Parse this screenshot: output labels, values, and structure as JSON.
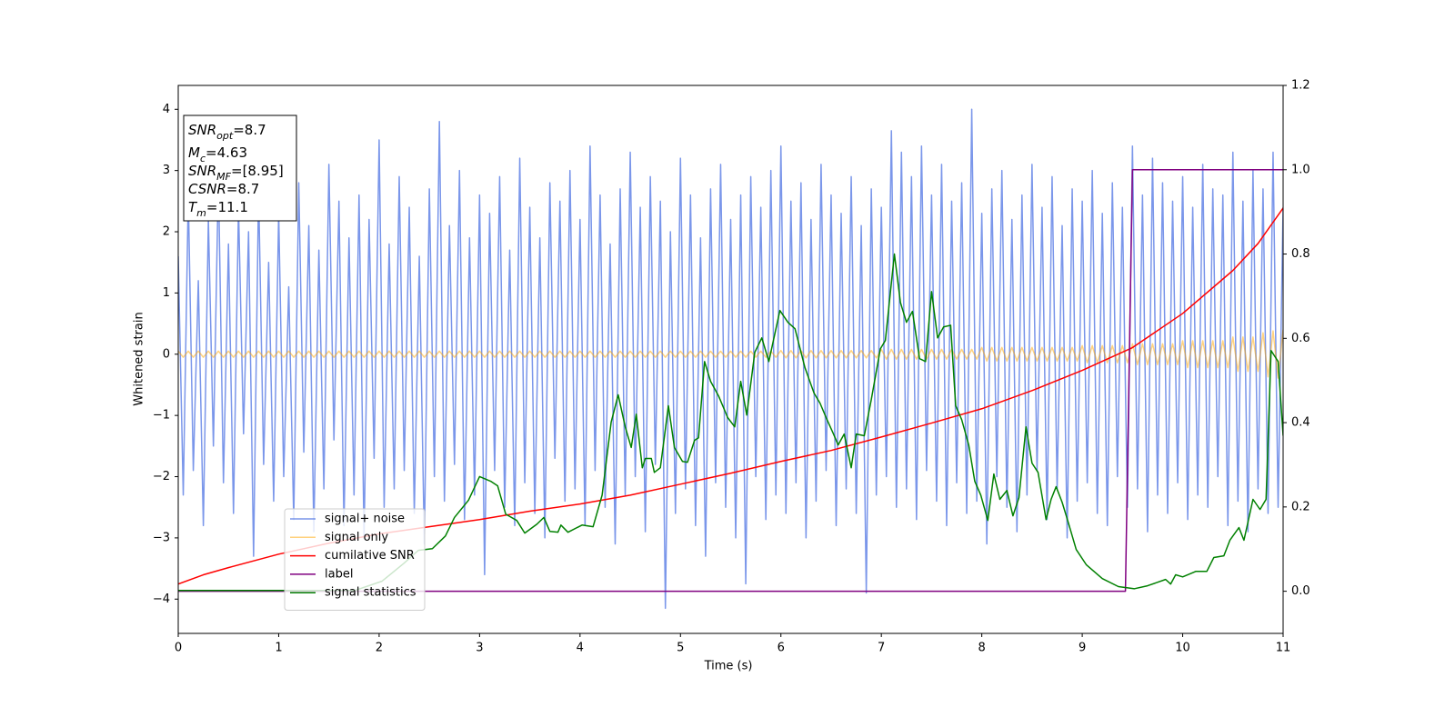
{
  "chart_data": {
    "type": "line",
    "xlabel": "Time (s)",
    "ylabel": "Whitened strain",
    "xlim": [
      0,
      11
    ],
    "ylim": [
      -4.56,
      4.39
    ],
    "y2lim": [
      -0.1,
      1.2
    ],
    "xticks": [
      0,
      1,
      2,
      3,
      4,
      5,
      6,
      7,
      8,
      9,
      10,
      11
    ],
    "yticks": [
      {
        "value": -4,
        "label": "−4"
      },
      {
        "value": -3,
        "label": "−3"
      },
      {
        "value": -2,
        "label": "−2"
      },
      {
        "value": -1,
        "label": "−1"
      },
      0,
      1,
      2,
      3,
      4
    ],
    "y2ticks": [
      {
        "value": 0,
        "label": "0.0"
      },
      0.2,
      0.4,
      0.6,
      0.8,
      {
        "value": 1,
        "label": "1.0"
      },
      1.2
    ],
    "grid": false,
    "legend": "lower left",
    "annotations": [
      {
        "symbol": "SNR",
        "subscript": "opt",
        "text": "=8.7"
      },
      {
        "symbol": "M",
        "subscript": "c",
        "text": "=4.63"
      },
      {
        "symbol": "SNR",
        "subscript": "MF",
        "text": "=[8.95]"
      },
      {
        "symbol": "CSNR",
        "text": "=8.7"
      },
      {
        "symbol": "T",
        "subscript": "m",
        "text": "=11.1"
      }
    ],
    "x": [
      0,
      0.05,
      0.1,
      0.15,
      0.2,
      0.25,
      0.3,
      0.35,
      0.4,
      0.45,
      0.5,
      0.55,
      0.6,
      0.65,
      0.7,
      0.75,
      0.8,
      0.85,
      0.9,
      0.95,
      1,
      1.05,
      1.1,
      1.15,
      1.2,
      1.25,
      1.3,
      1.35,
      1.4,
      1.45,
      1.5,
      1.55,
      1.6,
      1.65,
      1.7,
      1.75,
      1.8,
      1.85,
      1.9,
      1.95,
      2,
      2.05,
      2.1,
      2.15,
      2.2,
      2.25,
      2.3,
      2.35,
      2.4,
      2.45,
      2.5,
      2.55,
      2.6,
      2.65,
      2.7,
      2.75,
      2.8,
      2.85,
      2.9,
      2.95,
      3,
      3.05,
      3.1,
      3.15,
      3.2,
      3.25,
      3.3,
      3.35,
      3.4,
      3.45,
      3.5,
      3.55,
      3.6,
      3.65,
      3.7,
      3.75,
      3.8,
      3.85,
      3.9,
      3.95,
      4,
      4.05,
      4.1,
      4.15,
      4.2,
      4.25,
      4.3,
      4.35,
      4.4,
      4.45,
      4.5,
      4.55,
      4.6,
      4.65,
      4.7,
      4.75,
      4.8,
      4.85,
      4.9,
      4.95,
      5,
      5.05,
      5.1,
      5.15,
      5.2,
      5.25,
      5.3,
      5.35,
      5.4,
      5.45,
      5.5,
      5.55,
      5.6,
      5.65,
      5.7,
      5.75,
      5.8,
      5.85,
      5.9,
      5.95,
      6,
      6.05,
      6.1,
      6.15,
      6.2,
      6.25,
      6.3,
      6.35,
      6.4,
      6.45,
      6.5,
      6.55,
      6.6,
      6.65,
      6.7,
      6.75,
      6.8,
      6.85,
      6.9,
      6.95,
      7,
      7.05,
      7.1,
      7.15,
      7.2,
      7.25,
      7.3,
      7.35,
      7.4,
      7.45,
      7.5,
      7.55,
      7.6,
      7.65,
      7.7,
      7.75,
      7.8,
      7.85,
      7.9,
      7.95,
      8,
      8.05,
      8.1,
      8.15,
      8.2,
      8.25,
      8.3,
      8.35,
      8.4,
      8.45,
      8.5,
      8.55,
      8.6,
      8.65,
      8.7,
      8.75,
      8.8,
      8.85,
      8.9,
      8.95,
      9,
      9.05,
      9.1,
      9.15,
      9.2,
      9.25,
      9.3,
      9.35,
      9.4,
      9.45,
      9.5,
      9.55,
      9.6,
      9.65,
      9.7,
      9.75,
      9.8,
      9.85,
      9.9,
      9.95,
      10,
      10.05,
      10.1,
      10.15,
      10.2,
      10.25,
      10.3,
      10.35,
      10.4,
      10.45,
      10.5,
      10.55,
      10.6,
      10.65,
      10.7,
      10.75,
      10.8,
      10.85,
      10.9,
      10.95,
      11
    ],
    "series": [
      {
        "name": "signal+ noise",
        "color": "#4169e1",
        "values": [
          1.6,
          -2.3,
          2.6,
          -1.9,
          1.2,
          -2.8,
          2.2,
          -1.5,
          2.9,
          -2.1,
          1.8,
          -2.6,
          2.4,
          -1.3,
          2.0,
          -3.3,
          2.7,
          -1.8,
          1.5,
          -2.4,
          2.3,
          -2.0,
          1.1,
          -2.7,
          2.8,
          -1.6,
          2.1,
          -2.9,
          1.7,
          -2.2,
          3.1,
          -1.4,
          2.5,
          -2.8,
          1.9,
          -2.3,
          2.6,
          -3.0,
          2.2,
          -1.7,
          3.5,
          -2.5,
          1.8,
          -2.2,
          2.9,
          -1.9,
          2.4,
          -2.6,
          1.6,
          -3.1,
          2.7,
          -2.0,
          3.8,
          -2.4,
          2.1,
          -1.8,
          3.0,
          -2.7,
          1.9,
          -2.3,
          2.6,
          -3.6,
          2.3,
          -1.9,
          2.9,
          -2.5,
          1.7,
          -2.8,
          3.2,
          -2.1,
          2.4,
          -2.6,
          1.9,
          -3.0,
          2.8,
          -1.7,
          2.5,
          -2.4,
          3.0,
          -2.2,
          2.2,
          -2.8,
          3.4,
          -1.9,
          2.6,
          -2.5,
          1.8,
          -3.1,
          2.7,
          -2.3,
          3.3,
          -2.0,
          2.4,
          -2.9,
          2.9,
          -1.8,
          2.5,
          -4.15,
          2.0,
          -2.6,
          3.2,
          -2.2,
          2.6,
          -2.8,
          1.9,
          -3.3,
          2.7,
          -2.1,
          3.1,
          -2.5,
          2.2,
          -3.0,
          2.6,
          -3.75,
          2.9,
          -2.0,
          2.4,
          -2.7,
          3.0,
          -2.3,
          3.4,
          -2.6,
          2.5,
          -2.1,
          2.8,
          -3.0,
          2.2,
          -2.4,
          3.1,
          -1.9,
          2.6,
          -2.8,
          2.3,
          -2.2,
          2.9,
          -2.6,
          2.1,
          -3.9,
          2.7,
          -2.3,
          2.4,
          -2.0,
          3.65,
          -2.5,
          3.3,
          -2.2,
          2.9,
          -2.7,
          3.4,
          -1.9,
          2.6,
          -2.4,
          3.1,
          -2.8,
          2.5,
          -2.1,
          2.8,
          -2.6,
          4.0,
          -2.4,
          2.3,
          -3.1,
          2.7,
          -2.0,
          3.0,
          -2.5,
          2.2,
          -2.9,
          2.6,
          -2.3,
          3.1,
          -1.9,
          2.4,
          -2.7,
          2.9,
          -2.2,
          2.1,
          -3.0,
          2.7,
          -2.4,
          2.5,
          -2.1,
          3.0,
          -2.6,
          2.3,
          -2.8,
          2.8,
          -2.0,
          2.4,
          -2.5,
          3.4,
          -2.2,
          2.6,
          -2.9,
          3.2,
          -2.3,
          2.8,
          -2.6,
          2.5,
          -2.1,
          2.9,
          -2.7,
          2.4,
          -2.3,
          3.1,
          -2.5,
          2.7,
          -2.0,
          2.6,
          -2.8,
          3.3,
          -2.4,
          2.5,
          -2.9,
          3.0,
          -2.2,
          2.7,
          -2.6,
          3.3,
          -2.5,
          2.4
        ]
      },
      {
        "name": "signal only",
        "color": "#ffa500",
        "values": [
          0.05,
          -0.05,
          0.05,
          -0.05,
          0.05,
          -0.05,
          0.05,
          -0.05,
          0.05,
          -0.05,
          0.05,
          -0.05,
          0.05,
          -0.05,
          0.05,
          -0.05,
          0.05,
          -0.05,
          0.05,
          -0.05,
          0.05,
          -0.05,
          0.05,
          -0.05,
          0.05,
          -0.05,
          0.05,
          -0.05,
          0.05,
          -0.05,
          0.05,
          -0.05,
          0.05,
          -0.05,
          0.05,
          -0.05,
          0.05,
          -0.05,
          0.05,
          -0.05,
          0.05,
          -0.05,
          0.05,
          -0.05,
          0.05,
          -0.05,
          0.05,
          -0.05,
          0.05,
          -0.05,
          0.05,
          -0.05,
          0.05,
          -0.05,
          0.05,
          -0.05,
          0.05,
          -0.05,
          0.05,
          -0.05,
          0.05,
          -0.05,
          0.05,
          -0.05,
          0.05,
          -0.05,
          0.05,
          -0.05,
          0.05,
          -0.05,
          0.05,
          -0.05,
          0.05,
          -0.05,
          0.05,
          -0.05,
          0.05,
          -0.05,
          0.05,
          -0.05,
          0.05,
          -0.05,
          0.05,
          -0.05,
          0.05,
          -0.05,
          0.05,
          -0.05,
          0.05,
          -0.05,
          0.05,
          -0.05,
          0.05,
          -0.05,
          0.05,
          -0.05,
          0.05,
          -0.05,
          0.05,
          -0.05,
          0.05,
          -0.05,
          0.05,
          -0.05,
          0.05,
          -0.05,
          0.05,
          -0.05,
          0.05,
          -0.05,
          0.05,
          -0.05,
          0.05,
          -0.05,
          0.05,
          -0.05,
          0.05,
          -0.05,
          0.05,
          -0.05,
          0.06,
          -0.06,
          0.06,
          -0.06,
          0.06,
          -0.06,
          0.06,
          -0.06,
          0.06,
          -0.06,
          0.06,
          -0.06,
          0.06,
          -0.06,
          0.06,
          -0.06,
          0.06,
          -0.06,
          0.06,
          -0.06,
          0.08,
          -0.08,
          0.08,
          -0.08,
          0.08,
          -0.08,
          0.08,
          -0.08,
          0.08,
          -0.08,
          0.08,
          -0.08,
          0.08,
          -0.08,
          0.08,
          -0.08,
          0.08,
          -0.08,
          0.08,
          -0.08,
          0.11,
          -0.11,
          0.11,
          -0.11,
          0.11,
          -0.11,
          0.11,
          -0.11,
          0.11,
          -0.11,
          0.11,
          -0.11,
          0.11,
          -0.11,
          0.11,
          -0.11,
          0.11,
          -0.11,
          0.11,
          -0.11,
          0.14,
          -0.14,
          0.14,
          -0.14,
          0.14,
          -0.14,
          0.14,
          -0.14,
          0.14,
          -0.14,
          0.17,
          -0.17,
          0.17,
          -0.17,
          0.17,
          -0.17,
          0.17,
          -0.17,
          0.17,
          -0.17,
          0.22,
          -0.22,
          0.22,
          -0.22,
          0.22,
          -0.22,
          0.22,
          -0.22,
          0.22,
          -0.22,
          0.28,
          -0.28,
          0.28,
          -0.28,
          0.28,
          -0.28,
          0.35,
          -0.37,
          0.38,
          -0.39,
          0.4
        ]
      },
      {
        "name": "cumilative SNR",
        "color": "#ff0000",
        "axis": "y2",
        "x": [
          0,
          0.25,
          0.5,
          1,
          1.5,
          2,
          2.5,
          3,
          3.5,
          4,
          4.5,
          5,
          5.5,
          6,
          6.5,
          7,
          7.5,
          8,
          8.5,
          9,
          9.5,
          10,
          10.5,
          10.75,
          11
        ],
        "values": [
          0.017,
          0.039,
          0.056,
          0.088,
          0.114,
          0.136,
          0.153,
          0.17,
          0.19,
          0.207,
          0.228,
          0.254,
          0.28,
          0.308,
          0.334,
          0.366,
          0.399,
          0.433,
          0.476,
          0.524,
          0.578,
          0.659,
          0.761,
          0.825,
          0.909
        ]
      },
      {
        "name": "label",
        "color": "#800080",
        "axis": "y2",
        "x": [
          0,
          9.43,
          9.5,
          11
        ],
        "values": [
          0,
          0,
          1,
          1
        ]
      },
      {
        "name": "signal statistics",
        "color": "#008000",
        "axis": "y2",
        "x": [
          0,
          1.76,
          2.03,
          2.25,
          2.39,
          2.53,
          2.66,
          2.75,
          2.89,
          3.0,
          3.11,
          3.18,
          3.26,
          3.37,
          3.45,
          3.57,
          3.64,
          3.7,
          3.78,
          3.81,
          3.88,
          4.02,
          4.13,
          4.22,
          4.31,
          4.38,
          4.45,
          4.51,
          4.56,
          4.62,
          4.65,
          4.71,
          4.74,
          4.8,
          4.88,
          4.94,
          5.02,
          5.07,
          5.14,
          5.18,
          5.24,
          5.3,
          5.38,
          5.47,
          5.54,
          5.6,
          5.66,
          5.74,
          5.81,
          5.88,
          5.99,
          6.07,
          6.14,
          6.24,
          6.33,
          6.39,
          6.45,
          6.52,
          6.57,
          6.63,
          6.7,
          6.75,
          6.83,
          6.9,
          6.99,
          7.04,
          7.13,
          7.19,
          7.25,
          7.31,
          7.38,
          7.44,
          7.5,
          7.56,
          7.62,
          7.69,
          7.74,
          7.8,
          7.87,
          7.93,
          7.99,
          8.06,
          8.12,
          8.18,
          8.25,
          8.31,
          8.37,
          8.44,
          8.5,
          8.56,
          8.64,
          8.69,
          8.74,
          8.8,
          8.86,
          8.94,
          9.04,
          9.2,
          9.36,
          9.52,
          9.65,
          9.83,
          9.88,
          9.93,
          10.0,
          10.13,
          10.24,
          10.31,
          10.41,
          10.47,
          10.56,
          10.61,
          10.7,
          10.77,
          10.83,
          10.88,
          10.95,
          11.0
        ],
        "values": [
          0.002,
          0.002,
          0.024,
          0.067,
          0.097,
          0.101,
          0.131,
          0.175,
          0.216,
          0.272,
          0.261,
          0.25,
          0.183,
          0.168,
          0.138,
          0.159,
          0.175,
          0.142,
          0.14,
          0.157,
          0.14,
          0.157,
          0.153,
          0.228,
          0.401,
          0.466,
          0.39,
          0.341,
          0.42,
          0.293,
          0.315,
          0.315,
          0.282,
          0.293,
          0.44,
          0.341,
          0.308,
          0.306,
          0.358,
          0.364,
          0.545,
          0.498,
          0.463,
          0.412,
          0.39,
          0.498,
          0.418,
          0.567,
          0.601,
          0.545,
          0.666,
          0.638,
          0.623,
          0.53,
          0.47,
          0.446,
          0.412,
          0.375,
          0.347,
          0.373,
          0.293,
          0.373,
          0.369,
          0.455,
          0.575,
          0.595,
          0.8,
          0.685,
          0.638,
          0.664,
          0.552,
          0.545,
          0.711,
          0.601,
          0.627,
          0.631,
          0.44,
          0.407,
          0.347,
          0.261,
          0.228,
          0.168,
          0.278,
          0.218,
          0.239,
          0.179,
          0.222,
          0.39,
          0.304,
          0.282,
          0.17,
          0.218,
          0.248,
          0.211,
          0.164,
          0.099,
          0.063,
          0.03,
          0.011,
          0.006,
          0.013,
          0.028,
          0.017,
          0.039,
          0.034,
          0.047,
          0.047,
          0.08,
          0.084,
          0.121,
          0.151,
          0.121,
          0.218,
          0.194,
          0.218,
          0.571,
          0.545,
          0.369
        ]
      }
    ]
  }
}
